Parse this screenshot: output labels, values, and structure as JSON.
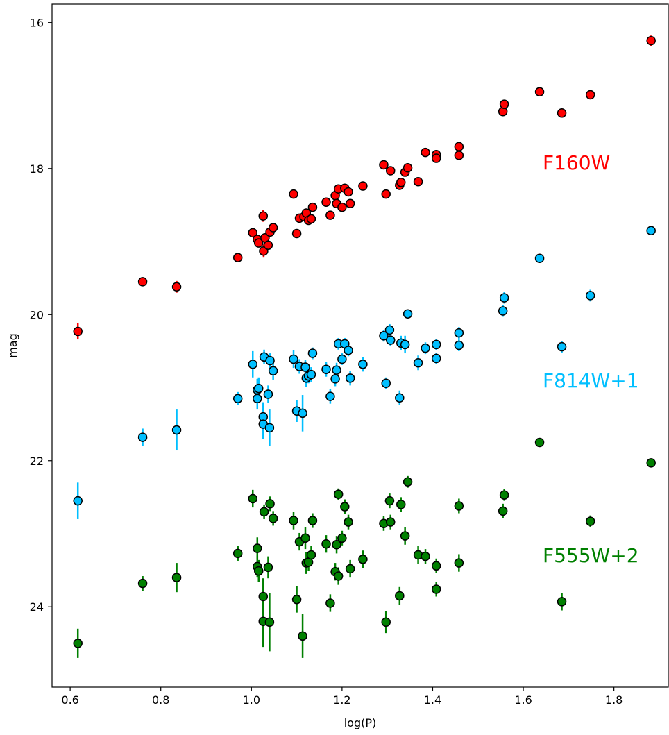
{
  "chart_data": {
    "type": "scatter",
    "xlabel": "log(P)",
    "ylabel": "mag",
    "xlim": [
      0.56,
      1.92
    ],
    "ylim": [
      25.1,
      15.75
    ],
    "y_inverted": true,
    "grid": false,
    "x_ticks": [
      "0.6",
      "0.8",
      "1.0",
      "1.2",
      "1.4",
      "1.6",
      "1.8"
    ],
    "y_ticks": [
      "16",
      "18",
      "20",
      "22",
      "24"
    ],
    "annotations": [
      {
        "text": "F160W",
        "color": "#ff0000"
      },
      {
        "text": "F814W+1",
        "color": "#00bfff"
      },
      {
        "text": "F555W+2",
        "color": "#008000"
      }
    ],
    "series": [
      {
        "color": "#ff0000",
        "points": [
          {
            "x": 0.617,
            "y": 20.23,
            "err": 0.11
          },
          {
            "x": 0.76,
            "y": 19.55,
            "err": 0.04
          },
          {
            "x": 0.835,
            "y": 19.62,
            "err": 0.08
          },
          {
            "x": 0.97,
            "y": 19.22,
            "err": 0.05
          },
          {
            "x": 1.003,
            "y": 18.88,
            "err": 0.06
          },
          {
            "x": 1.013,
            "y": 18.97,
            "err": 0.06
          },
          {
            "x": 1.016,
            "y": 19.02,
            "err": 0.06
          },
          {
            "x": 1.026,
            "y": 18.65,
            "err": 0.08
          },
          {
            "x": 1.027,
            "y": 19.13,
            "err": 0.09
          },
          {
            "x": 1.03,
            "y": 18.95,
            "err": 0.05
          },
          {
            "x": 1.037,
            "y": 19.05,
            "err": 0.05
          },
          {
            "x": 1.041,
            "y": 18.87,
            "err": 0.05
          },
          {
            "x": 1.048,
            "y": 18.81,
            "err": 0.05
          },
          {
            "x": 1.093,
            "y": 18.35,
            "err": 0.05
          },
          {
            "x": 1.1,
            "y": 18.89,
            "err": 0.06
          },
          {
            "x": 1.106,
            "y": 18.68,
            "err": 0.05
          },
          {
            "x": 1.116,
            "y": 18.66,
            "err": 0.06
          },
          {
            "x": 1.121,
            "y": 18.61,
            "err": 0.05
          },
          {
            "x": 1.126,
            "y": 18.71,
            "err": 0.05
          },
          {
            "x": 1.132,
            "y": 18.69,
            "err": 0.05
          },
          {
            "x": 1.135,
            "y": 18.53,
            "err": 0.05
          },
          {
            "x": 1.165,
            "y": 18.46,
            "err": 0.05
          },
          {
            "x": 1.174,
            "y": 18.64,
            "err": 0.05
          },
          {
            "x": 1.185,
            "y": 18.37,
            "err": 0.05
          },
          {
            "x": 1.188,
            "y": 18.48,
            "err": 0.05
          },
          {
            "x": 1.192,
            "y": 18.28,
            "err": 0.05
          },
          {
            "x": 1.2,
            "y": 18.53,
            "err": 0.05
          },
          {
            "x": 1.206,
            "y": 18.27,
            "err": 0.05
          },
          {
            "x": 1.214,
            "y": 18.32,
            "err": 0.05
          },
          {
            "x": 1.218,
            "y": 18.48,
            "err": 0.05
          },
          {
            "x": 1.246,
            "y": 18.24,
            "err": 0.05
          },
          {
            "x": 1.292,
            "y": 17.95,
            "err": 0.05
          },
          {
            "x": 1.297,
            "y": 18.35,
            "err": 0.05
          },
          {
            "x": 1.307,
            "y": 18.03,
            "err": 0.05
          },
          {
            "x": 1.327,
            "y": 18.23,
            "err": 0.05
          },
          {
            "x": 1.33,
            "y": 18.19,
            "err": 0.05
          },
          {
            "x": 1.339,
            "y": 18.05,
            "err": 0.05
          },
          {
            "x": 1.345,
            "y": 17.99,
            "err": 0.05
          },
          {
            "x": 1.368,
            "y": 18.18,
            "err": 0.05
          },
          {
            "x": 1.384,
            "y": 17.78,
            "err": 0.05
          },
          {
            "x": 1.408,
            "y": 17.81,
            "err": 0.05
          },
          {
            "x": 1.408,
            "y": 17.86,
            "err": 0.05
          },
          {
            "x": 1.458,
            "y": 17.7,
            "err": 0.05
          },
          {
            "x": 1.458,
            "y": 17.82,
            "err": 0.05
          },
          {
            "x": 1.555,
            "y": 17.22,
            "err": 0.05
          },
          {
            "x": 1.558,
            "y": 17.12,
            "err": 0.05
          },
          {
            "x": 1.636,
            "y": 16.95,
            "err": 0.05
          },
          {
            "x": 1.685,
            "y": 17.24,
            "err": 0.05
          },
          {
            "x": 1.748,
            "y": 16.99,
            "err": 0.05
          },
          {
            "x": 1.882,
            "y": 16.25,
            "err": 0.07
          }
        ]
      },
      {
        "color": "#00bfff",
        "points": [
          {
            "x": 0.617,
            "y": 22.55,
            "err": 0.25
          },
          {
            "x": 0.76,
            "y": 21.68,
            "err": 0.12
          },
          {
            "x": 0.835,
            "y": 21.58,
            "err": 0.28
          },
          {
            "x": 0.97,
            "y": 21.15,
            "err": 0.09
          },
          {
            "x": 1.003,
            "y": 20.68,
            "err": 0.18
          },
          {
            "x": 1.013,
            "y": 21.03,
            "err": 0.15
          },
          {
            "x": 1.013,
            "y": 21.15,
            "err": 0.15
          },
          {
            "x": 1.016,
            "y": 21.01,
            "err": 0.15
          },
          {
            "x": 1.026,
            "y": 21.4,
            "err": 0.2
          },
          {
            "x": 1.026,
            "y": 21.5,
            "err": 0.2
          },
          {
            "x": 1.028,
            "y": 20.58,
            "err": 0.1
          },
          {
            "x": 1.037,
            "y": 21.09,
            "err": 0.12
          },
          {
            "x": 1.04,
            "y": 21.55,
            "err": 0.25
          },
          {
            "x": 1.041,
            "y": 20.63,
            "err": 0.1
          },
          {
            "x": 1.048,
            "y": 20.77,
            "err": 0.12
          },
          {
            "x": 1.093,
            "y": 20.61,
            "err": 0.12
          },
          {
            "x": 1.1,
            "y": 21.32,
            "err": 0.15
          },
          {
            "x": 1.106,
            "y": 20.71,
            "err": 0.1
          },
          {
            "x": 1.113,
            "y": 21.35,
            "err": 0.25
          },
          {
            "x": 1.119,
            "y": 20.72,
            "err": 0.1
          },
          {
            "x": 1.121,
            "y": 20.87,
            "err": 0.12
          },
          {
            "x": 1.126,
            "y": 20.84,
            "err": 0.1
          },
          {
            "x": 1.132,
            "y": 20.82,
            "err": 0.1
          },
          {
            "x": 1.135,
            "y": 20.53,
            "err": 0.08
          },
          {
            "x": 1.165,
            "y": 20.75,
            "err": 0.1
          },
          {
            "x": 1.174,
            "y": 21.12,
            "err": 0.1
          },
          {
            "x": 1.185,
            "y": 20.88,
            "err": 0.1
          },
          {
            "x": 1.188,
            "y": 20.76,
            "err": 0.1
          },
          {
            "x": 1.192,
            "y": 20.4,
            "err": 0.08
          },
          {
            "x": 1.2,
            "y": 20.61,
            "err": 0.08
          },
          {
            "x": 1.206,
            "y": 20.4,
            "err": 0.08
          },
          {
            "x": 1.214,
            "y": 20.49,
            "err": 0.08
          },
          {
            "x": 1.218,
            "y": 20.87,
            "err": 0.1
          },
          {
            "x": 1.246,
            "y": 20.68,
            "err": 0.1
          },
          {
            "x": 1.292,
            "y": 20.29,
            "err": 0.08
          },
          {
            "x": 1.297,
            "y": 20.94,
            "err": 0.08
          },
          {
            "x": 1.305,
            "y": 20.21,
            "err": 0.08
          },
          {
            "x": 1.307,
            "y": 20.35,
            "err": 0.08
          },
          {
            "x": 1.327,
            "y": 21.14,
            "err": 0.1
          },
          {
            "x": 1.33,
            "y": 20.39,
            "err": 0.1
          },
          {
            "x": 1.339,
            "y": 20.41,
            "err": 0.12
          },
          {
            "x": 1.345,
            "y": 19.99,
            "err": 0.05
          },
          {
            "x": 1.368,
            "y": 20.66,
            "err": 0.1
          },
          {
            "x": 1.384,
            "y": 20.46,
            "err": 0.08
          },
          {
            "x": 1.408,
            "y": 20.41,
            "err": 0.08
          },
          {
            "x": 1.408,
            "y": 20.6,
            "err": 0.08
          },
          {
            "x": 1.458,
            "y": 20.25,
            "err": 0.08
          },
          {
            "x": 1.458,
            "y": 20.42,
            "err": 0.08
          },
          {
            "x": 1.555,
            "y": 19.95,
            "err": 0.08
          },
          {
            "x": 1.558,
            "y": 19.77,
            "err": 0.08
          },
          {
            "x": 1.636,
            "y": 19.23,
            "err": 0.05
          },
          {
            "x": 1.685,
            "y": 20.44,
            "err": 0.08
          },
          {
            "x": 1.748,
            "y": 19.74,
            "err": 0.08
          },
          {
            "x": 1.882,
            "y": 18.85,
            "err": 0.05
          }
        ]
      },
      {
        "color": "#008000",
        "points": [
          {
            "x": 0.617,
            "y": 24.5,
            "err": 0.2
          },
          {
            "x": 0.76,
            "y": 23.68,
            "err": 0.1
          },
          {
            "x": 0.835,
            "y": 23.6,
            "err": 0.2
          },
          {
            "x": 0.97,
            "y": 23.27,
            "err": 0.1
          },
          {
            "x": 1.003,
            "y": 22.52,
            "err": 0.12
          },
          {
            "x": 1.013,
            "y": 23.2,
            "err": 0.15
          },
          {
            "x": 1.013,
            "y": 23.45,
            "err": 0.15
          },
          {
            "x": 1.016,
            "y": 23.51,
            "err": 0.15
          },
          {
            "x": 1.026,
            "y": 23.86,
            "err": 0.25
          },
          {
            "x": 1.026,
            "y": 24.2,
            "err": 0.35
          },
          {
            "x": 1.028,
            "y": 22.7,
            "err": 0.1
          },
          {
            "x": 1.037,
            "y": 23.46,
            "err": 0.15
          },
          {
            "x": 1.04,
            "y": 24.21,
            "err": 0.4
          },
          {
            "x": 1.041,
            "y": 22.59,
            "err": 0.1
          },
          {
            "x": 1.048,
            "y": 22.79,
            "err": 0.1
          },
          {
            "x": 1.093,
            "y": 22.82,
            "err": 0.12
          },
          {
            "x": 1.1,
            "y": 23.9,
            "err": 0.18
          },
          {
            "x": 1.106,
            "y": 23.11,
            "err": 0.12
          },
          {
            "x": 1.113,
            "y": 24.4,
            "err": 0.3
          },
          {
            "x": 1.119,
            "y": 23.06,
            "err": 0.15
          },
          {
            "x": 1.121,
            "y": 23.4,
            "err": 0.15
          },
          {
            "x": 1.126,
            "y": 23.39,
            "err": 0.12
          },
          {
            "x": 1.132,
            "y": 23.29,
            "err": 0.12
          },
          {
            "x": 1.135,
            "y": 22.82,
            "err": 0.1
          },
          {
            "x": 1.165,
            "y": 23.14,
            "err": 0.12
          },
          {
            "x": 1.174,
            "y": 23.95,
            "err": 0.12
          },
          {
            "x": 1.185,
            "y": 23.52,
            "err": 0.12
          },
          {
            "x": 1.188,
            "y": 23.15,
            "err": 0.12
          },
          {
            "x": 1.192,
            "y": 22.46,
            "err": 0.08
          },
          {
            "x": 1.192,
            "y": 23.58,
            "err": 0.12
          },
          {
            "x": 1.2,
            "y": 23.06,
            "err": 0.1
          },
          {
            "x": 1.206,
            "y": 22.63,
            "err": 0.1
          },
          {
            "x": 1.214,
            "y": 22.84,
            "err": 0.1
          },
          {
            "x": 1.218,
            "y": 23.48,
            "err": 0.12
          },
          {
            "x": 1.246,
            "y": 23.35,
            "err": 0.12
          },
          {
            "x": 1.292,
            "y": 22.86,
            "err": 0.1
          },
          {
            "x": 1.297,
            "y": 24.21,
            "err": 0.15
          },
          {
            "x": 1.305,
            "y": 22.55,
            "err": 0.1
          },
          {
            "x": 1.307,
            "y": 22.84,
            "err": 0.1
          },
          {
            "x": 1.327,
            "y": 23.85,
            "err": 0.12
          },
          {
            "x": 1.33,
            "y": 22.6,
            "err": 0.1
          },
          {
            "x": 1.339,
            "y": 23.03,
            "err": 0.12
          },
          {
            "x": 1.345,
            "y": 22.29,
            "err": 0.08
          },
          {
            "x": 1.368,
            "y": 23.29,
            "err": 0.12
          },
          {
            "x": 1.384,
            "y": 23.31,
            "err": 0.1
          },
          {
            "x": 1.408,
            "y": 23.44,
            "err": 0.1
          },
          {
            "x": 1.408,
            "y": 23.76,
            "err": 0.1
          },
          {
            "x": 1.458,
            "y": 22.62,
            "err": 0.1
          },
          {
            "x": 1.458,
            "y": 23.4,
            "err": 0.12
          },
          {
            "x": 1.555,
            "y": 22.69,
            "err": 0.1
          },
          {
            "x": 1.558,
            "y": 22.47,
            "err": 0.08
          },
          {
            "x": 1.636,
            "y": 21.75,
            "err": 0.06
          },
          {
            "x": 1.685,
            "y": 23.93,
            "err": 0.12
          },
          {
            "x": 1.748,
            "y": 22.83,
            "err": 0.08
          },
          {
            "x": 1.882,
            "y": 22.03,
            "err": 0.05
          }
        ]
      }
    ]
  }
}
